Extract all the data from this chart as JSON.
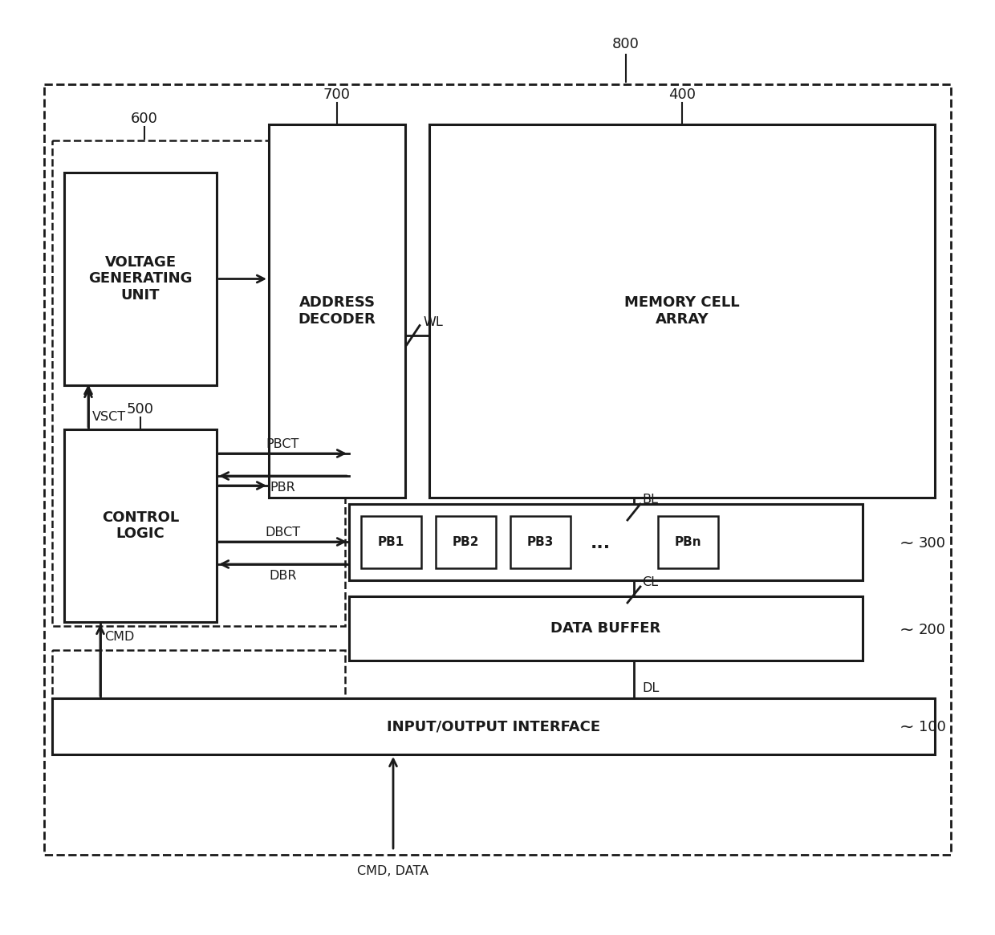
{
  "bg_color": "#ffffff",
  "line_color": "#1a1a1a",
  "font_family": "DejaVu Sans",
  "label_voltage": "VOLTAGE\nGENERATING\nUNIT",
  "label_address": "ADDRESS\nDECODER",
  "label_memory": "MEMORY CELL\nARRAY",
  "label_control": "CONTROL\nLOGIC",
  "label_data_buffer": "DATA BUFFER",
  "label_io": "INPUT/OUTPUT INTERFACE",
  "nums": [
    "800",
    "700",
    "400",
    "600",
    "500",
    "300",
    "200",
    "100"
  ],
  "pb_labels": [
    "PB1",
    "PB2",
    "PB3",
    "PBn"
  ]
}
